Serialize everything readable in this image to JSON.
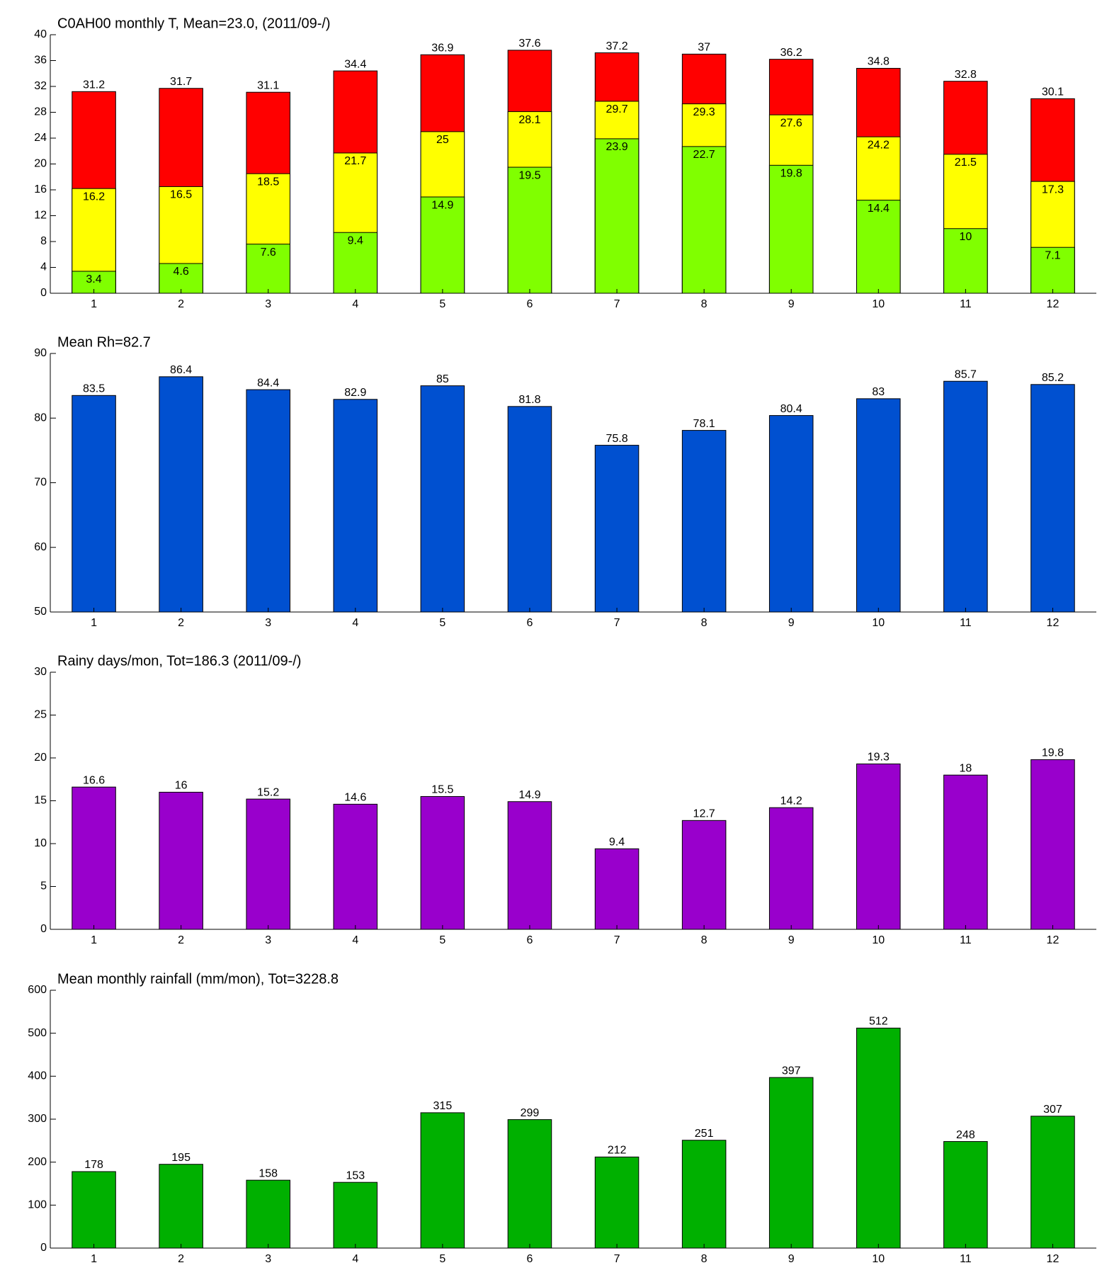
{
  "chart_data": [
    {
      "type": "bar",
      "title": "C0AH00 monthly T, Mean=23.0, (2011/09-/)",
      "categories": [
        1,
        2,
        3,
        4,
        5,
        6,
        7,
        8,
        9,
        10,
        11,
        12
      ],
      "series": [
        {
          "color": "#ff0000",
          "values": [
            31.2,
            31.7,
            31.1,
            34.4,
            36.9,
            37.6,
            37.2,
            37,
            36.2,
            34.8,
            32.8,
            30.1
          ]
        },
        {
          "color": "#ffff00",
          "values": [
            16.2,
            16.5,
            18.5,
            21.7,
            25,
            28.1,
            29.7,
            29.3,
            27.6,
            24.2,
            21.5,
            17.3
          ]
        },
        {
          "color": "#80ff00",
          "values": [
            3.4,
            4.6,
            7.6,
            9.4,
            14.9,
            19.5,
            23.9,
            22.7,
            19.8,
            14.4,
            10,
            7.1
          ]
        }
      ],
      "ylim": [
        0,
        40
      ],
      "yticks": [
        0,
        4,
        8,
        12,
        16,
        20,
        24,
        28,
        32,
        36,
        40
      ]
    },
    {
      "type": "bar",
      "title": "Mean Rh=82.7",
      "categories": [
        1,
        2,
        3,
        4,
        5,
        6,
        7,
        8,
        9,
        10,
        11,
        12
      ],
      "series": [
        {
          "color": "#0050d0",
          "values": [
            83.5,
            86.4,
            84.4,
            82.9,
            85,
            81.8,
            75.8,
            78.1,
            80.4,
            83,
            85.7,
            85.2
          ]
        }
      ],
      "ylim": [
        50,
        90
      ],
      "yticks": [
        50,
        60,
        70,
        80,
        90
      ]
    },
    {
      "type": "bar",
      "title": "Rainy days/mon, Tot=186.3 (2011/09-/)",
      "categories": [
        1,
        2,
        3,
        4,
        5,
        6,
        7,
        8,
        9,
        10,
        11,
        12
      ],
      "series": [
        {
          "color": "#9900cc",
          "values": [
            16.6,
            16,
            15.2,
            14.6,
            15.5,
            14.9,
            9.4,
            12.7,
            14.2,
            19.3,
            18,
            19.8
          ]
        }
      ],
      "ylim": [
        0,
        30
      ],
      "yticks": [
        0,
        5,
        10,
        15,
        20,
        25,
        30
      ]
    },
    {
      "type": "bar",
      "title": "Mean monthly rainfall (mm/mon), Tot=3228.8",
      "categories": [
        1,
        2,
        3,
        4,
        5,
        6,
        7,
        8,
        9,
        10,
        11,
        12
      ],
      "series": [
        {
          "color": "#00b000",
          "values": [
            178,
            195,
            158,
            153,
            315,
            299,
            212,
            251,
            397,
            512,
            248,
            307
          ]
        }
      ],
      "ylim": [
        0,
        600
      ],
      "yticks": [
        0,
        100,
        200,
        300,
        400,
        500,
        600
      ]
    }
  ]
}
